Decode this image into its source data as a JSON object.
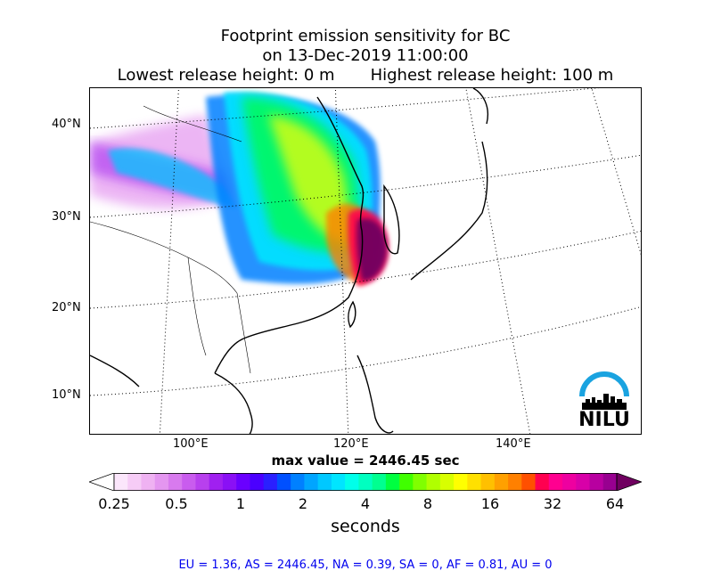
{
  "title": {
    "line1": "Footprint emission sensitivity for BC",
    "line2": "on 13-Dec-2019 11:00:00",
    "line3": "Lowest release height: 0 m       Highest release height: 100 m"
  },
  "map": {
    "lat_labels": [
      "40°N",
      "30°N",
      "20°N",
      "10°N"
    ],
    "lon_labels": [
      "100°E",
      "120°E",
      "140°E"
    ]
  },
  "max_value": "max value = 2446.45 sec",
  "colorbar": {
    "ticks": [
      "0.25",
      "0.5",
      "1",
      "2",
      "4",
      "8",
      "16",
      "32",
      "64"
    ],
    "unit": "seconds",
    "colors": [
      "#ffffff",
      "#fbe6fb",
      "#f6ccf6",
      "#efb2f2",
      "#e496f0",
      "#d87aee",
      "#c95cee",
      "#b840ee",
      "#a020f0",
      "#8a10f5",
      "#6a00ff",
      "#4b00ff",
      "#2a20ff",
      "#0050ff",
      "#0080ff",
      "#00a5ff",
      "#00c8ff",
      "#00e5ff",
      "#00ffea",
      "#00ffc0",
      "#00ff90",
      "#00ff40",
      "#40ff00",
      "#80ff00",
      "#b0ff00",
      "#d8ff00",
      "#ffff00",
      "#ffe000",
      "#ffc000",
      "#ffa000",
      "#ff8000",
      "#ff5000",
      "#ff0050",
      "#ff0090",
      "#ee00a0",
      "#d800a8",
      "#b800a0",
      "#980090",
      "#700060"
    ]
  },
  "logo": {
    "text": "NILU",
    "arc_color": "#1aa3e0"
  },
  "footer": "EU = 1.36,  AS = 2446.45,  NA = 0.39,  SA = 0,  AF = 0.81,  AU = 0"
}
